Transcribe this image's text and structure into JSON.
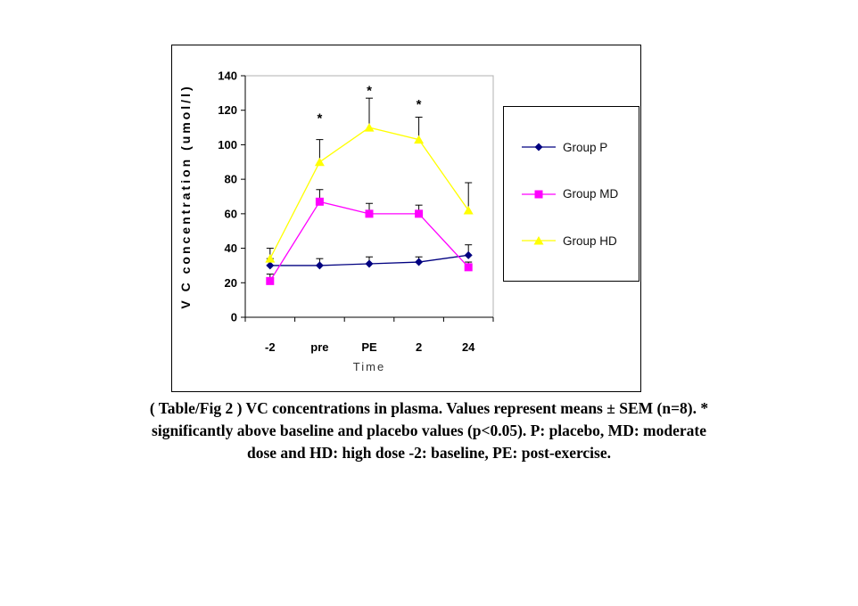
{
  "caption": {
    "lines": [
      "( Table/Fig 2 ) VC concentrations in plasma. Values represent means ± SEM (n=8). *",
      "significantly above baseline and placebo values (p<0.05). P: placebo, MD: moderate",
      "dose and HD: high dose -2: baseline, PE: post-exercise."
    ]
  },
  "chart_data": {
    "type": "line",
    "title": "",
    "xlabel": "Time",
    "ylabel": "V C concentration (umol/l)",
    "categories": [
      "-2",
      "pre",
      "PE",
      "2",
      "24"
    ],
    "ylim": [
      0,
      140
    ],
    "yticks": [
      0,
      20,
      40,
      60,
      80,
      100,
      120,
      140
    ],
    "grid": false,
    "legend_position": "right-inside",
    "plot_border_color": "#b0b0b0",
    "axis_color": "#000000",
    "error_bar_color": "#000000",
    "series": [
      {
        "name": "Group P",
        "marker": "diamond",
        "color": "#000080",
        "values": [
          30,
          30,
          31,
          32,
          36
        ],
        "sem_upper": [
          4,
          4,
          4,
          3,
          6
        ]
      },
      {
        "name": "Group MD",
        "marker": "square",
        "color": "#FF00FF",
        "values": [
          21,
          67,
          60,
          60,
          29
        ],
        "sem_upper": [
          4,
          7,
          6,
          5,
          3
        ]
      },
      {
        "name": "Group HD",
        "marker": "triangle",
        "color": "#FFFF00",
        "values": [
          34,
          90,
          110,
          103,
          62
        ],
        "sem_upper": [
          6,
          13,
          17,
          13,
          16
        ]
      }
    ],
    "annotations": [
      {
        "text": "*",
        "category_index": 1,
        "value": 117
      },
      {
        "text": "*",
        "category_index": 2,
        "value": 133
      },
      {
        "text": "*",
        "category_index": 3,
        "value": 125
      }
    ]
  }
}
